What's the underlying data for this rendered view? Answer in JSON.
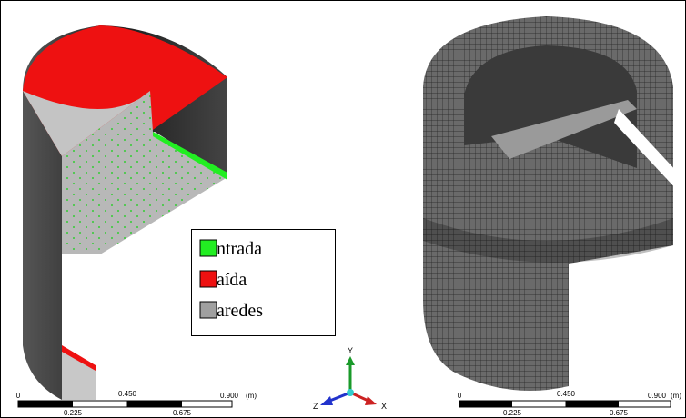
{
  "legend": {
    "items": [
      {
        "label": "ntrada",
        "color": "#22ee22"
      },
      {
        "label": "aída",
        "color": "#ee1111"
      },
      {
        "label": "aredes",
        "color": "#a0a0a0"
      }
    ]
  },
  "scale_bars": [
    {
      "top": [
        "0",
        "0.450",
        "0.900",
        "(m)"
      ],
      "bottom": [
        "0.225",
        "0.675"
      ]
    },
    {
      "top": [
        "0",
        "0.450",
        "0.900",
        "(m)"
      ],
      "bottom": [
        "0.225",
        "0.675"
      ]
    }
  ],
  "triad": {
    "y": "Y",
    "z": "Z",
    "x": "X"
  }
}
